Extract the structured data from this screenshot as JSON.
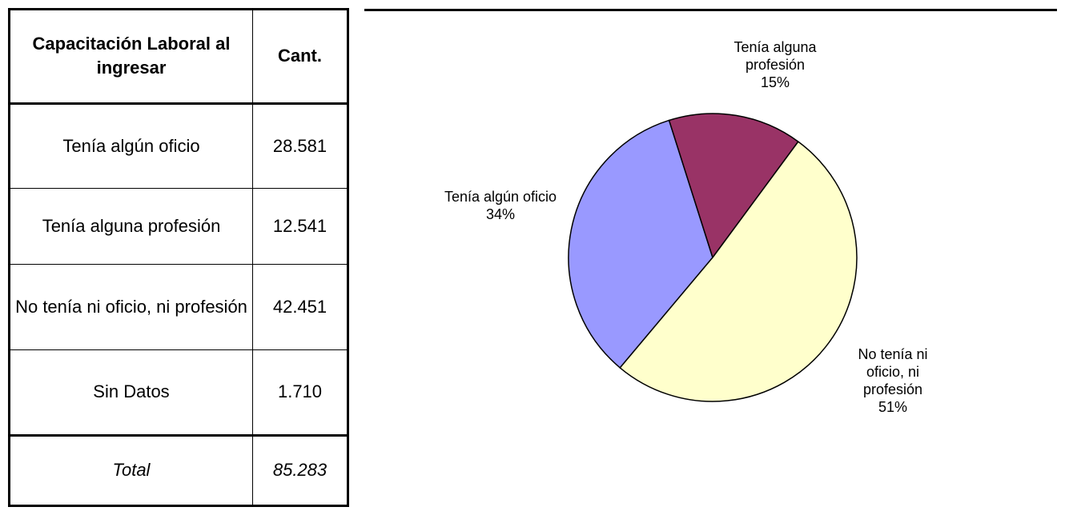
{
  "table": {
    "header": [
      "Capacitación Laboral al ingresar",
      "Cant."
    ],
    "rows": [
      [
        "Tenía algún oficio",
        "28.581"
      ],
      [
        "Tenía alguna profesión",
        "12.541"
      ],
      [
        "No tenía ni oficio, ni profesión",
        "42.451"
      ],
      [
        "Sin Datos",
        "1.710"
      ]
    ],
    "total": [
      "Total",
      "85.283"
    ]
  },
  "chart_data": {
    "type": "pie",
    "categories": [
      "Tenía algún oficio",
      "Tenía alguna profesión",
      "No tenía ni oficio, ni profesión"
    ],
    "values": [
      34,
      15,
      51
    ],
    "value_labels": [
      "34%",
      "15%",
      "51%"
    ],
    "colors": [
      "#9999ff",
      "#993366",
      "#ffffcc"
    ]
  }
}
